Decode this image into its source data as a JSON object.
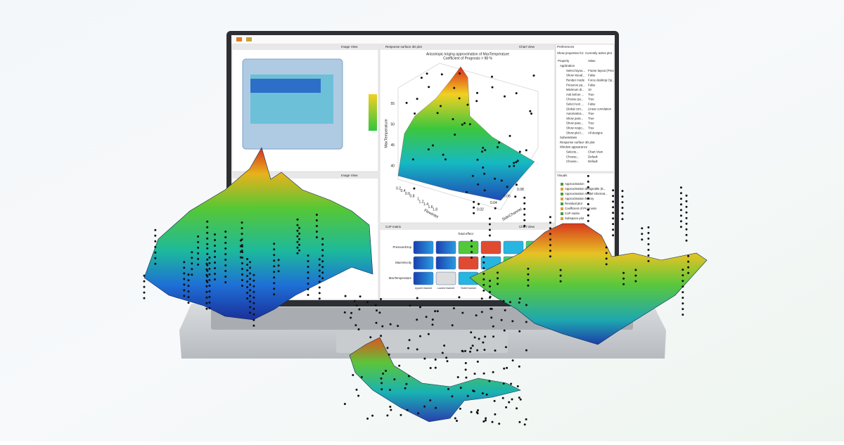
{
  "image_views": {
    "titles": [
      "Image View",
      "Image View"
    ]
  },
  "plot_panel": {
    "tab": "Response surface 3D plot",
    "tab2": "Chart View",
    "title": "Anisotropic kriging approximation of MaxTemperature",
    "subtitle": "Coefficient of Prognosis = 98 %",
    "z_label": "MaxTemperature",
    "x_label": "FlowInlet",
    "y_label": "SideChannel",
    "z_ticks": [
      "40",
      "45",
      "50",
      "55"
    ],
    "x_ticks": [
      "0.2",
      "0.4",
      "0.6",
      "0.8",
      "1",
      "1.2",
      "1.4",
      "1.6",
      "1.8"
    ],
    "y_ticks": [
      "0.02",
      "0.04",
      "0.06",
      "0.08"
    ]
  },
  "preferences": {
    "title": "Preferences",
    "show_for": "Show properties for:",
    "show_for_value": "Currently active plot",
    "header": [
      "Property",
      "Value"
    ],
    "rows": [
      [
        "Application",
        ""
      ],
      [
        "Select layou...",
        "Frame layout (Prev..."
      ],
      [
        "Show visual...",
        "False"
      ],
      [
        "Render mode",
        "Force desktop Op..."
      ],
      [
        "Preserve pa...",
        "False"
      ],
      [
        "Minimum di...",
        "10"
      ],
      [
        "Ask before ...",
        "True"
      ],
      [
        "Choose pa...",
        "True"
      ],
      [
        "Select text ...",
        "False"
      ],
      [
        "Global corr...",
        "Linear correlation"
      ],
      [
        "Automatica...",
        "True"
      ],
      [
        "Show para...",
        "True"
      ],
      [
        "Show para...",
        "True"
      ],
      [
        "Show respo...",
        "True"
      ],
      [
        "Show plot t...",
        "All designs"
      ],
      [
        "Subwindows",
        ""
      ],
      [
        "Response surface 3D plot",
        ""
      ],
      [
        "Window appearance",
        ""
      ],
      [
        "Selecte...",
        "Chart View"
      ],
      [
        "Choose...",
        "Default"
      ],
      [
        "Choose...",
        "Default"
      ]
    ]
  },
  "visuals": {
    "title": "Visuals",
    "items": [
      "Approximation",
      "Approximation designable (E...",
      "Approximation model informat...",
      "Approximation history",
      "Residual plot",
      "Coefficient of Prognosis",
      "CoP matrix",
      "Subspace plot"
    ]
  },
  "cop_panel": {
    "tab": "CoP matrix",
    "tab2": "Chart View",
    "title": "Total effect",
    "rows": [
      "PressureDrop",
      "MaxVelocity",
      "MaxTemperature"
    ],
    "columns": [
      "UpperChannel",
      "LowerChannel",
      "SideChannel"
    ]
  }
}
